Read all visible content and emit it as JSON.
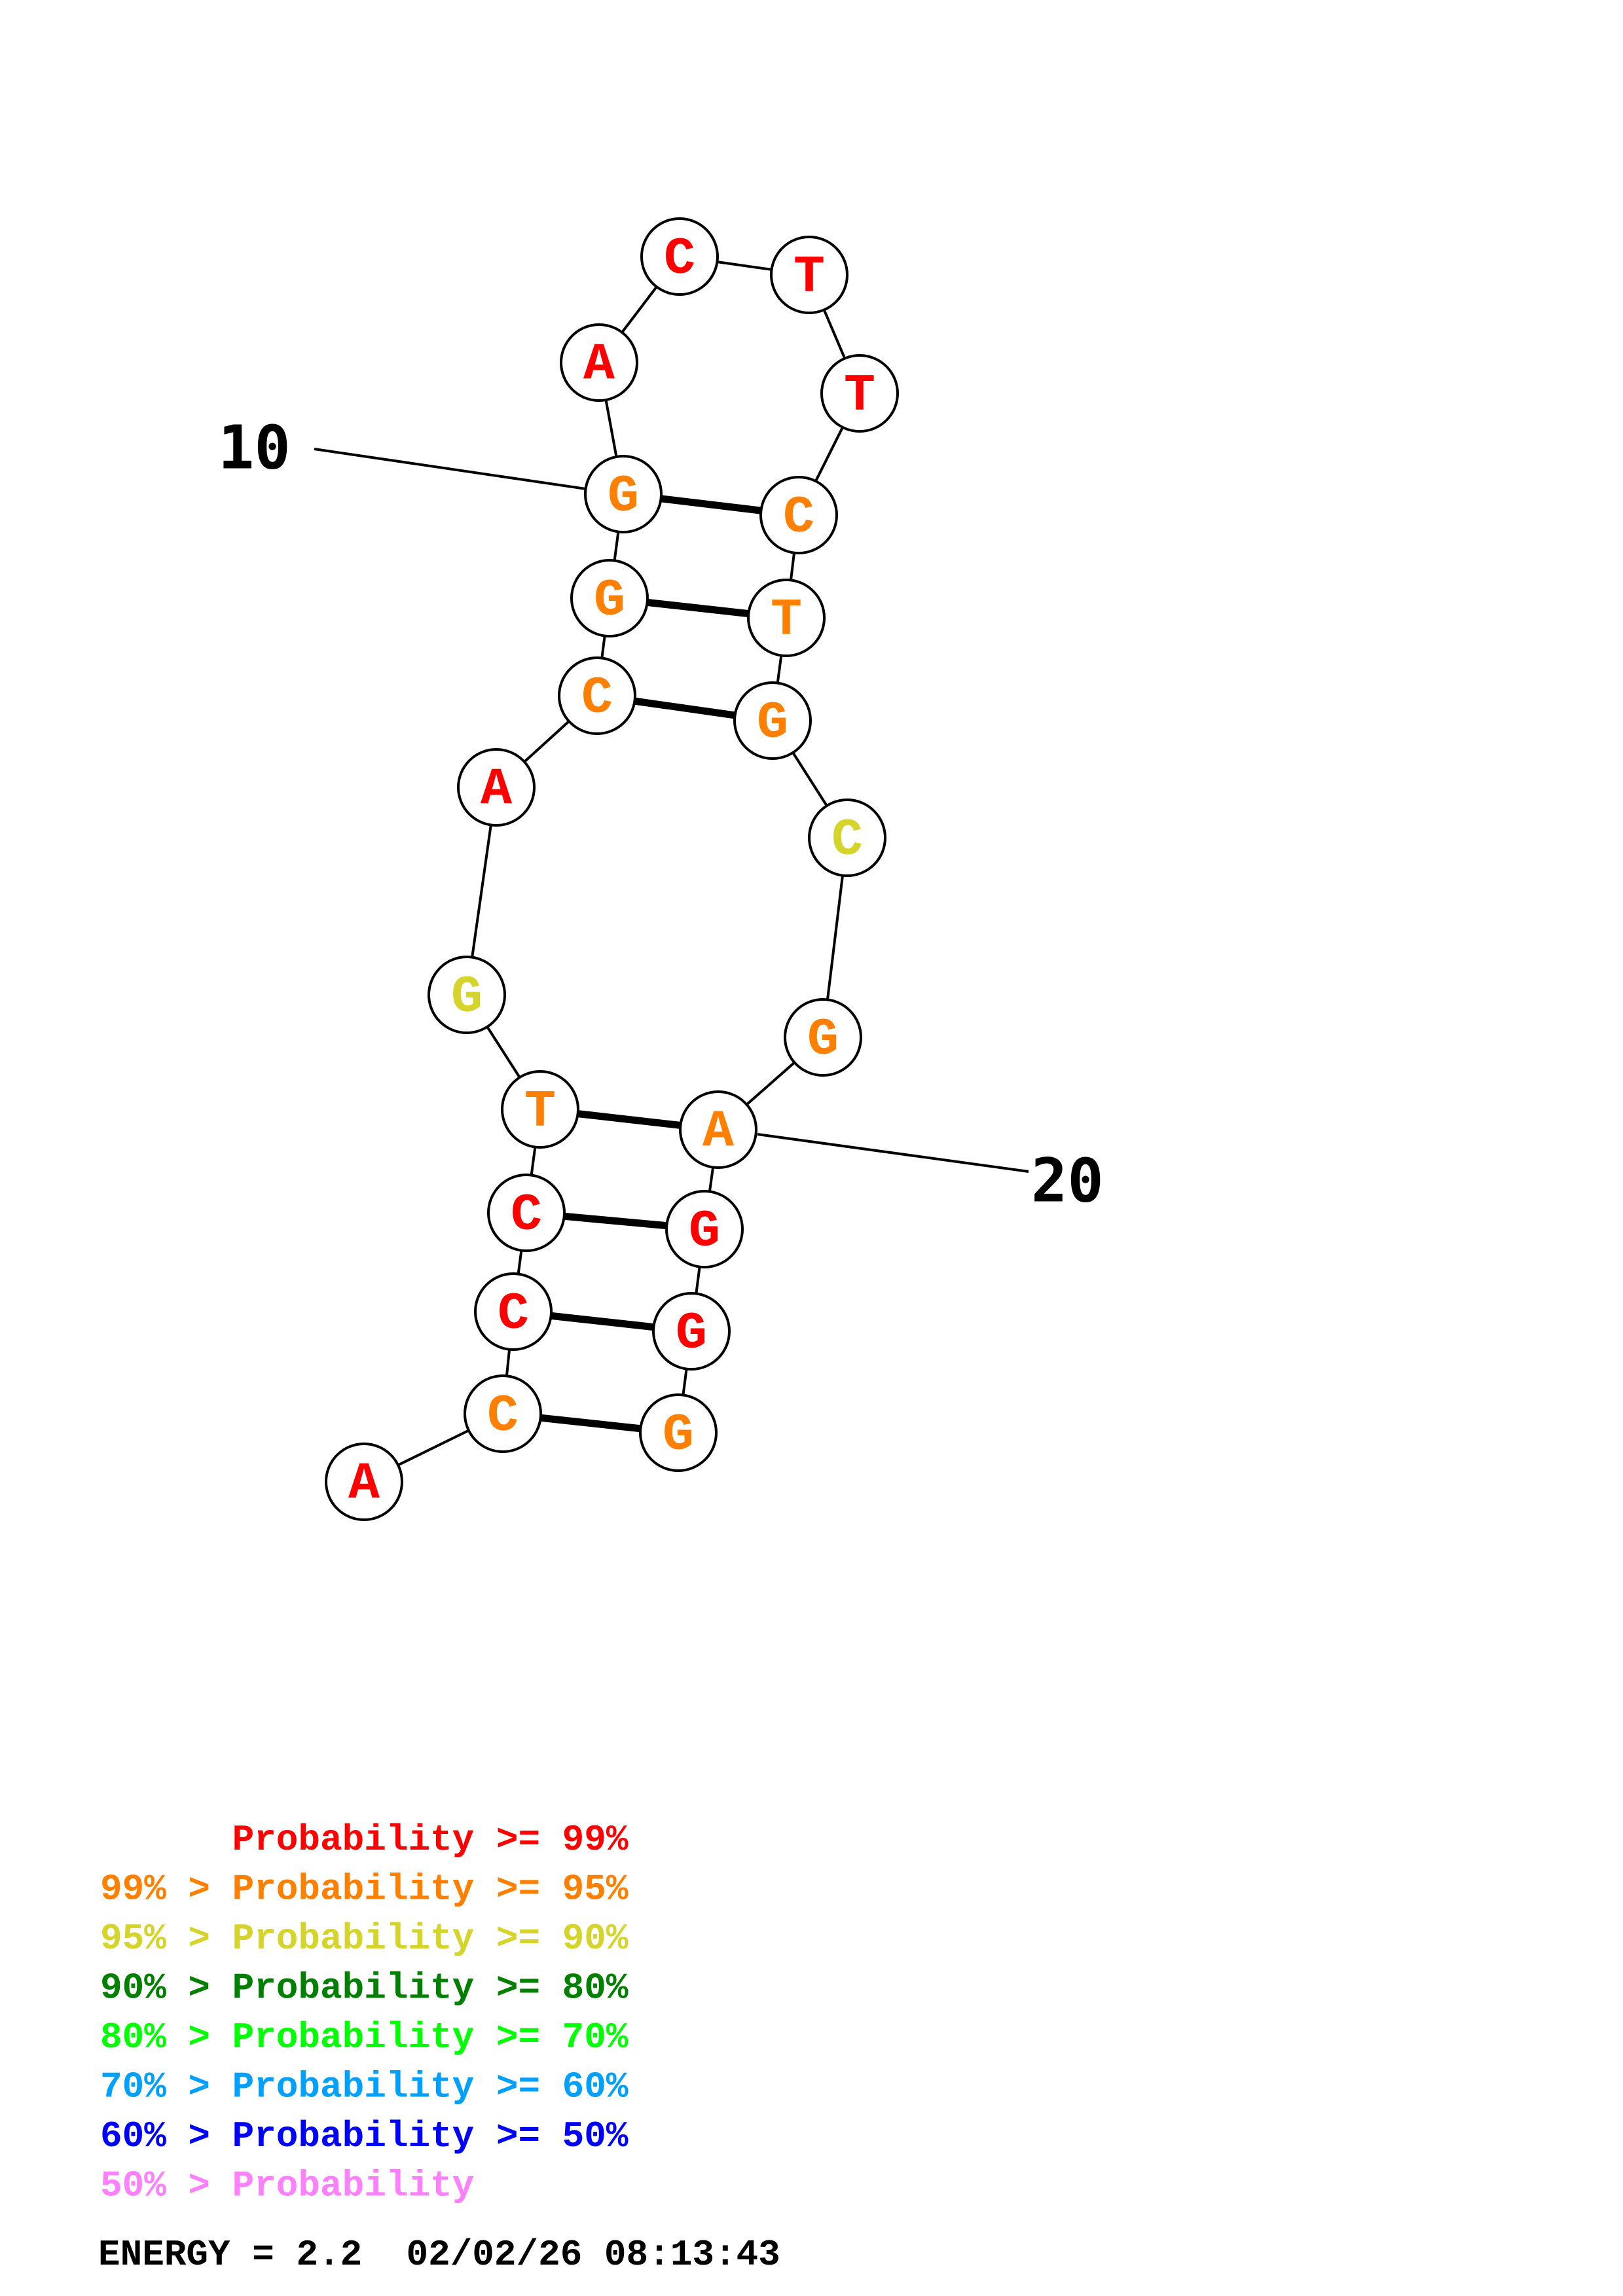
{
  "sequence": [
    {
      "index": 1,
      "base": "A",
      "color": "#ff0000"
    },
    {
      "index": 2,
      "base": "C",
      "color": "#ff8000"
    },
    {
      "index": 3,
      "base": "C",
      "color": "#ff0000"
    },
    {
      "index": 4,
      "base": "C",
      "color": "#ff0000"
    },
    {
      "index": 5,
      "base": "T",
      "color": "#ff8000"
    },
    {
      "index": 6,
      "base": "G",
      "color": "#d4d42a"
    },
    {
      "index": 7,
      "base": "A",
      "color": "#ff0000"
    },
    {
      "index": 8,
      "base": "C",
      "color": "#ff8000"
    },
    {
      "index": 9,
      "base": "G",
      "color": "#ff8000"
    },
    {
      "index": 10,
      "base": "G",
      "color": "#ff8000"
    },
    {
      "index": 11,
      "base": "A",
      "color": "#ff0000"
    },
    {
      "index": 12,
      "base": "C",
      "color": "#ff0000"
    },
    {
      "index": 13,
      "base": "T",
      "color": "#ff0000"
    },
    {
      "index": 14,
      "base": "T",
      "color": "#ff0000"
    },
    {
      "index": 15,
      "base": "C",
      "color": "#ff8000"
    },
    {
      "index": 16,
      "base": "T",
      "color": "#ff8000"
    },
    {
      "index": 17,
      "base": "G",
      "color": "#ff8000"
    },
    {
      "index": 18,
      "base": "C",
      "color": "#d4d42a"
    },
    {
      "index": 19,
      "base": "G",
      "color": "#ff8000"
    },
    {
      "index": 20,
      "base": "A",
      "color": "#ff8000"
    },
    {
      "index": 21,
      "base": "G",
      "color": "#ff0000"
    },
    {
      "index": 22,
      "base": "G",
      "color": "#ff0000"
    },
    {
      "index": 23,
      "base": "G",
      "color": "#ff8000"
    }
  ],
  "pairs": [
    [
      2,
      23
    ],
    [
      3,
      22
    ],
    [
      4,
      21
    ],
    [
      5,
      20
    ],
    [
      8,
      17
    ],
    [
      9,
      16
    ],
    [
      10,
      15
    ]
  ],
  "position_labels": [
    {
      "text": "10",
      "index": 10
    },
    {
      "text": "20",
      "index": 20
    }
  ],
  "legend": [
    {
      "prefix": "    ",
      "text": "Probability >= 99%",
      "color": "#ff0000"
    },
    {
      "prefix": "99% > ",
      "text": "Probability >= 95%",
      "color": "#ff8000"
    },
    {
      "prefix": "95% > ",
      "text": "Probability >= 90%",
      "color": "#d4d42a"
    },
    {
      "prefix": "90% > ",
      "text": "Probability >= 80%",
      "color": "#008000"
    },
    {
      "prefix": "80% > ",
      "text": "Probability >= 70%",
      "color": "#00ff00"
    },
    {
      "prefix": "70% > ",
      "text": "Probability >= 60%",
      "color": "#00a0ff"
    },
    {
      "prefix": "60% > ",
      "text": "Probability >= 50%",
      "color": "#0000ff"
    },
    {
      "prefix": "50% > ",
      "text": "Probability",
      "color": "#ff80ff"
    }
  ],
  "energy_line": "ENERGY = 2.2  02/02/26 08:13:43"
}
